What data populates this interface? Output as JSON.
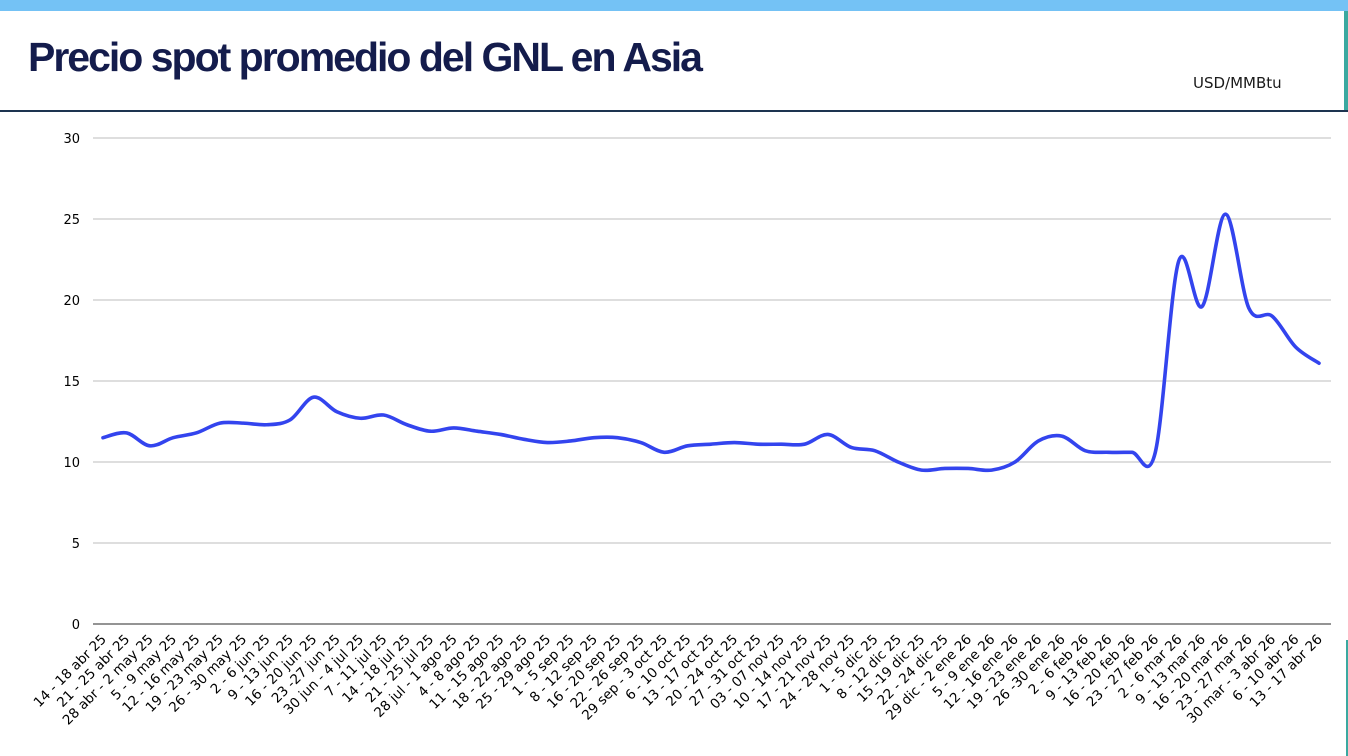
{
  "header": {
    "title": "Precio spot promedio del GNL en Asia",
    "unit": "USD/MMBtu"
  },
  "colors": {
    "line": "#3344ee",
    "title": "#141c4c",
    "top_bar": "#74c2f5",
    "grid": "#bdbdbd"
  },
  "chart_data": {
    "type": "line",
    "title": "Precio spot promedio del GNL en Asia",
    "ylabel": "USD/MMBtu",
    "xlabel": "",
    "ylim": [
      0,
      30
    ],
    "yticks": [
      0,
      5,
      10,
      15,
      20,
      25,
      30
    ],
    "grid": true,
    "legend": "none",
    "categories": [
      "14 - 18 abr 25",
      "21 - 25 abr 25",
      "28 abr - 2 may 25",
      "5 - 9 may 25",
      "12 - 16 may 25",
      "19 - 23 may 25",
      "26 - 30 may 25",
      "2 - 6 jun 25",
      "9 - 13 jun 25",
      "16 - 20 jun 25",
      "23 -27 jun 25",
      "30 jun - 4 jul 25",
      "7 - 11 jul 25",
      "14 - 18 jul 25",
      "21 - 25 jul 25",
      "28 jul - 1 ago 25",
      "4 - 8 ago 25",
      "11 - 15 ago 25",
      "18 - 22 ago 25",
      "25 - 29 ago 25",
      "1 - 5 sep 25",
      "8 - 12 sep 25",
      "16 - 20 sep 25",
      "22 - 26 sep 25",
      "29 sep - 3 oct 25",
      "6 - 10 oct 25",
      "13 - 17 oct 25",
      "20 - 24 oct 25",
      "27 - 31 oct 25",
      "03 - 07 nov 25",
      "10 - 14 nov 25",
      "17 - 21 nov 25",
      "24 - 28 nov 25",
      "1 - 5 dic 25",
      "8 - 12 dic 25",
      "15 -19 dic 25",
      "22 - 24 dic 25",
      "29 dic - 2 ene 26",
      "5 - 9 ene 26",
      "12 - 16 ene 26",
      "19 - 23 ene 26",
      "26 -30 ene 26",
      "2 - 6 feb 26",
      "9 - 13 feb 26",
      "16 - 20 feb 26",
      "23 - 27 feb 26",
      "2 - 6 mar 26",
      "9 - 13 mar 26",
      "16 - 20 mar 26",
      "23 - 27 mar 26",
      "30 mar - 3 abr 26",
      "6 - 10 abr 26",
      "13 - 17 abr 26"
    ],
    "series": [
      {
        "values": [
          11.5,
          11.8,
          11.0,
          11.5,
          11.8,
          12.4,
          12.4,
          12.3,
          12.6,
          14.0,
          13.1,
          12.7,
          12.9,
          12.3,
          11.9,
          12.1,
          11.9,
          11.7,
          11.4,
          11.2,
          11.3,
          11.5,
          11.5,
          11.2,
          10.6,
          11.0,
          11.1,
          11.2,
          11.1,
          11.1,
          11.1,
          11.7,
          10.9,
          10.7,
          10.0,
          9.5,
          9.6,
          9.6,
          9.5,
          10.0,
          11.3,
          11.6,
          10.7,
          10.6,
          10.6,
          10.6,
          22.4,
          19.6,
          25.3,
          19.5,
          19.0,
          17.1,
          16.1
        ]
      }
    ]
  }
}
